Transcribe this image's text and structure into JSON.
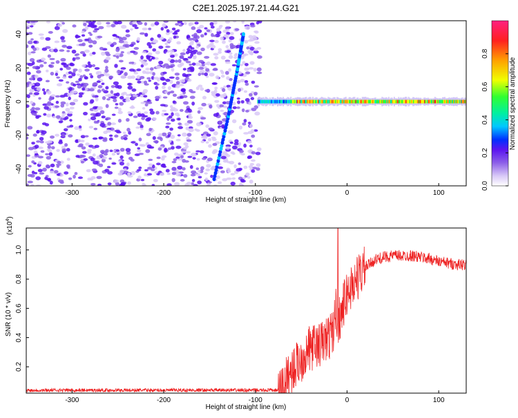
{
  "title": "C2E1.2025.197.21.44.G21",
  "chart_data": [
    {
      "type": "heatmap",
      "xlabel": "Height of straight line (km)",
      "ylabel": "Frequency (Hz)",
      "xlim": [
        -350,
        130
      ],
      "ylim": [
        -50,
        48
      ],
      "xticks": [
        -300,
        -200,
        -100,
        0,
        100
      ],
      "yticks": [
        -40,
        -20,
        0,
        20,
        40
      ],
      "colorbar": {
        "label": "Normalized spectral amplitude",
        "range": [
          0.0,
          1.0
        ],
        "ticks": [
          0.0,
          0.2,
          0.4,
          0.6,
          0.8
        ],
        "colors": [
          "#ffffff",
          "#d9c9f7",
          "#8c5fe8",
          "#5b14f0",
          "#0030ff",
          "#00c8ff",
          "#00f0a0",
          "#30ff30",
          "#f0ff00",
          "#ffa000",
          "#ff2020",
          "#ff2080"
        ]
      },
      "description_points": {
        "doppler_streak": [
          [
            -145,
            -46
          ],
          [
            -130,
            -10
          ],
          [
            -120,
            18
          ],
          [
            -113,
            40
          ]
        ],
        "carrier_line_frequency": 0,
        "noise_region_end": -95
      },
      "grid": false
    },
    {
      "type": "line",
      "xlabel": "Height of straight line (km)",
      "ylabel": "SNR (10 * v/v)",
      "yscale_label": "(x10",
      "yscale_exp": "4",
      "yscale_close": ")",
      "xlim": [
        -350,
        130
      ],
      "ylim": [
        0.02,
        1.15
      ],
      "xticks": [
        -300,
        -200,
        -100,
        0,
        100
      ],
      "yticks": [
        0.2,
        0.4,
        0.6,
        0.8,
        1.0
      ],
      "series_color": "#ee2222",
      "x": [
        -350,
        -300,
        -250,
        -200,
        -150,
        -100,
        -75,
        -70,
        -60,
        -50,
        -40,
        -30,
        -20,
        -15,
        -12,
        -10,
        -5,
        0,
        10,
        20,
        30,
        40,
        50,
        60,
        70,
        80,
        90,
        100,
        110,
        120,
        130
      ],
      "y": [
        0.04,
        0.04,
        0.04,
        0.04,
        0.04,
        0.04,
        0.04,
        0.07,
        0.18,
        0.25,
        0.33,
        0.35,
        0.4,
        0.45,
        0.6,
        0.5,
        0.6,
        0.7,
        0.8,
        0.88,
        0.93,
        0.95,
        0.96,
        0.96,
        0.96,
        0.95,
        0.94,
        0.92,
        0.91,
        0.9,
        0.9
      ],
      "spike": {
        "x": -10,
        "y": 1.15
      },
      "grid": false
    }
  ]
}
